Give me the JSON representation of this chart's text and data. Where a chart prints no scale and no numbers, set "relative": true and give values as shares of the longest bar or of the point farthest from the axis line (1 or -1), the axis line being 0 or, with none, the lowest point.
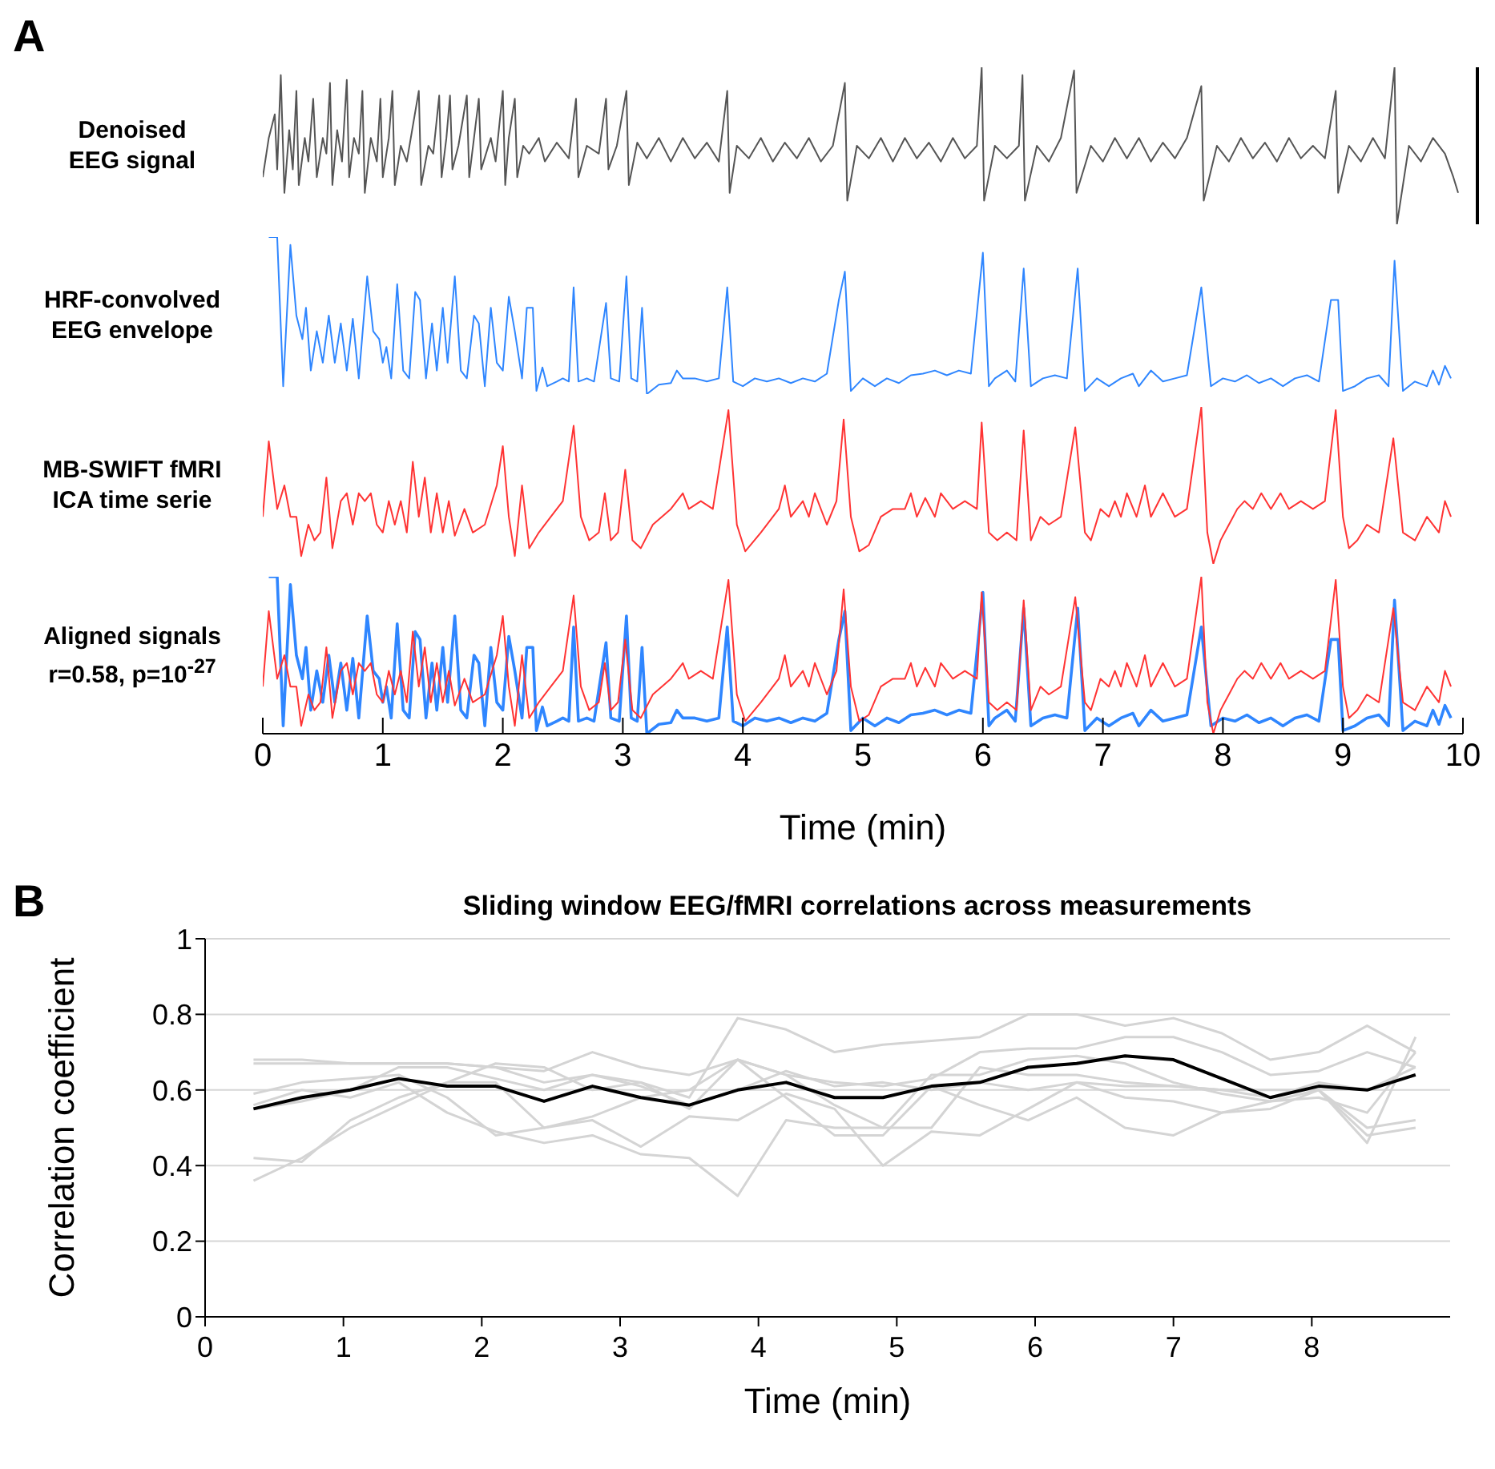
{
  "chart_data": [
    {
      "type": "line",
      "relative": true,
      "annotations": [
        "A"
      ],
      "ylabel": "Denoised\nEEG signal",
      "xlim": [
        0,
        10
      ],
      "tick_labels": false,
      "marker": "none",
      "x": [
        0.0,
        0.05,
        0.1,
        0.12,
        0.15,
        0.18,
        0.22,
        0.25,
        0.28,
        0.3,
        0.35,
        0.38,
        0.42,
        0.45,
        0.5,
        0.53,
        0.56,
        0.58,
        0.62,
        0.66,
        0.7,
        0.72,
        0.76,
        0.8,
        0.83,
        0.85,
        0.9,
        0.95,
        0.98,
        1.0,
        1.05,
        1.08,
        1.1,
        1.15,
        1.2,
        1.3,
        1.32,
        1.38,
        1.42,
        1.47,
        1.49,
        1.53,
        1.56,
        1.58,
        1.63,
        1.7,
        1.72,
        1.76,
        1.8,
        1.82,
        1.9,
        1.94,
        2.0,
        2.02,
        2.05,
        2.1,
        2.12,
        2.17,
        2.22,
        2.3,
        2.35,
        2.45,
        2.55,
        2.61,
        2.63,
        2.7,
        2.8,
        2.86,
        2.88,
        2.95,
        3.03,
        3.05,
        3.12,
        3.2,
        3.3,
        3.4,
        3.5,
        3.6,
        3.7,
        3.8,
        3.87,
        3.89,
        3.95,
        4.05,
        4.15,
        4.25,
        4.35,
        4.45,
        4.55,
        4.65,
        4.75,
        4.85,
        4.87,
        4.95,
        5.05,
        5.15,
        5.25,
        5.35,
        5.45,
        5.55,
        5.65,
        5.75,
        5.85,
        5.95,
        5.99,
        6.01,
        6.1,
        6.2,
        6.3,
        6.33,
        6.35,
        6.45,
        6.55,
        6.65,
        6.76,
        6.78,
        6.9,
        7.0,
        7.1,
        7.2,
        7.3,
        7.4,
        7.5,
        7.6,
        7.7,
        7.82,
        7.84,
        7.95,
        8.05,
        8.15,
        8.25,
        8.35,
        8.45,
        8.55,
        8.65,
        8.75,
        8.85,
        8.94,
        8.96,
        9.05,
        9.15,
        9.25,
        9.35,
        9.43,
        9.45,
        9.55,
        9.65,
        9.75,
        9.85,
        9.92,
        9.96
      ],
      "series": [
        {
          "color": "#555555",
          "values": [
            0.3,
            0.55,
            0.7,
            0.35,
            0.95,
            0.2,
            0.6,
            0.35,
            0.85,
            0.25,
            0.55,
            0.4,
            0.8,
            0.3,
            0.55,
            0.45,
            0.9,
            0.25,
            0.6,
            0.4,
            0.92,
            0.3,
            0.55,
            0.45,
            0.85,
            0.2,
            0.55,
            0.4,
            0.8,
            0.3,
            0.55,
            0.85,
            0.25,
            0.5,
            0.4,
            0.85,
            0.25,
            0.5,
            0.45,
            0.82,
            0.3,
            0.55,
            0.82,
            0.35,
            0.5,
            0.82,
            0.3,
            0.55,
            0.8,
            0.35,
            0.55,
            0.4,
            0.85,
            0.25,
            0.55,
            0.8,
            0.3,
            0.5,
            0.45,
            0.55,
            0.4,
            0.52,
            0.42,
            0.8,
            0.3,
            0.5,
            0.45,
            0.8,
            0.35,
            0.5,
            0.85,
            0.25,
            0.52,
            0.42,
            0.55,
            0.4,
            0.55,
            0.42,
            0.52,
            0.4,
            0.85,
            0.2,
            0.5,
            0.42,
            0.55,
            0.4,
            0.52,
            0.42,
            0.55,
            0.4,
            0.5,
            0.9,
            0.15,
            0.5,
            0.42,
            0.55,
            0.4,
            0.55,
            0.42,
            0.52,
            0.4,
            0.55,
            0.42,
            0.5,
            1.0,
            0.15,
            0.5,
            0.42,
            0.5,
            0.95,
            0.15,
            0.5,
            0.4,
            0.55,
            0.98,
            0.2,
            0.5,
            0.4,
            0.55,
            0.42,
            0.55,
            0.4,
            0.52,
            0.42,
            0.55,
            0.88,
            0.15,
            0.5,
            0.4,
            0.55,
            0.42,
            0.52,
            0.4,
            0.55,
            0.42,
            0.5,
            0.42,
            0.85,
            0.2,
            0.5,
            0.4,
            0.55,
            0.42,
            1.0,
            0.0,
            0.5,
            0.4,
            0.55,
            0.45,
            0.3,
            0.2
          ]
        }
      ]
    },
    {
      "type": "line",
      "relative": true,
      "ylabel": "HRF-convolved\nEEG envelope",
      "xlim": [
        0,
        10
      ],
      "tick_labels": false,
      "marker": "none",
      "series": [
        {
          "color": "#2f86ff",
          "x": [
            0.05,
            0.12,
            0.17,
            0.23,
            0.28,
            0.33,
            0.36,
            0.4,
            0.45,
            0.5,
            0.55,
            0.6,
            0.65,
            0.7,
            0.75,
            0.8,
            0.87,
            0.92,
            0.97,
            1.0,
            1.03,
            1.07,
            1.12,
            1.17,
            1.22,
            1.27,
            1.31,
            1.36,
            1.41,
            1.45,
            1.5,
            1.54,
            1.6,
            1.65,
            1.7,
            1.76,
            1.8,
            1.85,
            1.9,
            1.95,
            2.0,
            2.05,
            2.1,
            2.16,
            2.2,
            2.25,
            2.28,
            2.33,
            2.37,
            2.45,
            2.5,
            2.55,
            2.59,
            2.63,
            2.7,
            2.76,
            2.86,
            2.9,
            2.97,
            3.03,
            3.07,
            3.12,
            3.16,
            3.2,
            3.3,
            3.4,
            3.45,
            3.5,
            3.6,
            3.7,
            3.8,
            3.87,
            3.92,
            4.0,
            4.1,
            4.2,
            4.3,
            4.4,
            4.5,
            4.6,
            4.7,
            4.8,
            4.85,
            4.9,
            5.0,
            5.1,
            5.2,
            5.3,
            5.4,
            5.5,
            5.6,
            5.7,
            5.8,
            5.9,
            6.0,
            6.05,
            6.1,
            6.2,
            6.27,
            6.34,
            6.4,
            6.5,
            6.6,
            6.7,
            6.79,
            6.85,
            6.95,
            7.05,
            7.15,
            7.25,
            7.3,
            7.4,
            7.5,
            7.6,
            7.7,
            7.82,
            7.9,
            8.0,
            8.1,
            8.2,
            8.3,
            8.4,
            8.5,
            8.6,
            8.7,
            8.8,
            8.9,
            8.96,
            9.0,
            9.1,
            9.2,
            9.3,
            9.38,
            9.43,
            9.5,
            9.6,
            9.7,
            9.75,
            9.8,
            9.85,
            9.9
          ],
          "values": [
            1.0,
            1.0,
            0.05,
            0.95,
            0.5,
            0.35,
            0.55,
            0.15,
            0.4,
            0.2,
            0.5,
            0.2,
            0.45,
            0.15,
            0.48,
            0.1,
            0.75,
            0.4,
            0.35,
            0.2,
            0.3,
            0.1,
            0.7,
            0.15,
            0.1,
            0.65,
            0.6,
            0.1,
            0.45,
            0.15,
            0.55,
            0.2,
            0.75,
            0.15,
            0.1,
            0.5,
            0.45,
            0.05,
            0.55,
            0.2,
            0.15,
            0.62,
            0.4,
            0.1,
            0.55,
            0.55,
            0.02,
            0.17,
            0.05,
            0.08,
            0.1,
            0.08,
            0.68,
            0.08,
            0.1,
            0.08,
            0.58,
            0.1,
            0.08,
            0.75,
            0.1,
            0.08,
            0.55,
            0.0,
            0.06,
            0.07,
            0.15,
            0.1,
            0.1,
            0.08,
            0.1,
            0.68,
            0.08,
            0.05,
            0.1,
            0.08,
            0.1,
            0.07,
            0.1,
            0.08,
            0.13,
            0.6,
            0.78,
            0.02,
            0.1,
            0.05,
            0.1,
            0.07,
            0.12,
            0.13,
            0.15,
            0.12,
            0.15,
            0.13,
            0.9,
            0.05,
            0.1,
            0.15,
            0.08,
            0.8,
            0.05,
            0.1,
            0.12,
            0.1,
            0.8,
            0.02,
            0.1,
            0.05,
            0.1,
            0.13,
            0.05,
            0.15,
            0.08,
            0.1,
            0.12,
            0.68,
            0.05,
            0.1,
            0.08,
            0.12,
            0.07,
            0.1,
            0.05,
            0.1,
            0.12,
            0.08,
            0.6,
            0.6,
            0.02,
            0.05,
            0.1,
            0.12,
            0.05,
            0.85,
            0.02,
            0.08,
            0.05,
            0.15,
            0.06,
            0.18,
            0.1
          ]
        }
      ]
    },
    {
      "type": "line",
      "relative": true,
      "ylabel": "MB-SWIFT fMRI\nICA time serie",
      "xlim": [
        0,
        10
      ],
      "tick_labels": false,
      "marker": "none",
      "series": [
        {
          "color": "#ff3333",
          "x": [
            0.0,
            0.05,
            0.12,
            0.18,
            0.23,
            0.28,
            0.32,
            0.38,
            0.43,
            0.48,
            0.53,
            0.58,
            0.65,
            0.7,
            0.75,
            0.8,
            0.85,
            0.9,
            0.95,
            1.0,
            1.05,
            1.1,
            1.15,
            1.2,
            1.25,
            1.3,
            1.35,
            1.4,
            1.45,
            1.5,
            1.55,
            1.6,
            1.68,
            1.75,
            1.85,
            1.95,
            2.0,
            2.05,
            2.1,
            2.16,
            2.22,
            2.3,
            2.4,
            2.5,
            2.59,
            2.65,
            2.72,
            2.8,
            2.85,
            2.9,
            2.96,
            3.02,
            3.08,
            3.15,
            3.25,
            3.4,
            3.5,
            3.55,
            3.65,
            3.75,
            3.88,
            3.95,
            4.02,
            4.15,
            4.3,
            4.35,
            4.4,
            4.5,
            4.55,
            4.6,
            4.7,
            4.78,
            4.84,
            4.9,
            4.97,
            5.05,
            5.15,
            5.25,
            5.35,
            5.4,
            5.45,
            5.52,
            5.6,
            5.65,
            5.75,
            5.85,
            5.95,
            5.99,
            6.05,
            6.12,
            6.2,
            6.28,
            6.34,
            6.4,
            6.48,
            6.55,
            6.65,
            6.77,
            6.85,
            6.9,
            6.98,
            7.05,
            7.1,
            7.15,
            7.2,
            7.28,
            7.35,
            7.4,
            7.5,
            7.6,
            7.7,
            7.82,
            7.87,
            7.92,
            7.98,
            8.05,
            8.12,
            8.18,
            8.25,
            8.32,
            8.4,
            8.48,
            8.55,
            8.65,
            8.75,
            8.85,
            8.94,
            9.0,
            9.05,
            9.12,
            9.2,
            9.3,
            9.42,
            9.5,
            9.6,
            9.7,
            9.8,
            9.85,
            9.9
          ],
          "values": [
            0.3,
            0.78,
            0.35,
            0.5,
            0.3,
            0.3,
            0.05,
            0.25,
            0.15,
            0.2,
            0.55,
            0.1,
            0.4,
            0.45,
            0.25,
            0.45,
            0.4,
            0.45,
            0.25,
            0.2,
            0.4,
            0.25,
            0.4,
            0.2,
            0.65,
            0.3,
            0.55,
            0.2,
            0.45,
            0.2,
            0.4,
            0.18,
            0.35,
            0.2,
            0.25,
            0.5,
            0.75,
            0.3,
            0.05,
            0.5,
            0.1,
            0.2,
            0.3,
            0.4,
            0.88,
            0.3,
            0.15,
            0.2,
            0.45,
            0.15,
            0.2,
            0.6,
            0.15,
            0.1,
            0.25,
            0.35,
            0.45,
            0.35,
            0.4,
            0.35,
            0.98,
            0.25,
            0.08,
            0.2,
            0.35,
            0.5,
            0.3,
            0.4,
            0.3,
            0.45,
            0.25,
            0.4,
            0.92,
            0.3,
            0.08,
            0.12,
            0.3,
            0.35,
            0.35,
            0.45,
            0.3,
            0.42,
            0.3,
            0.45,
            0.35,
            0.4,
            0.35,
            0.9,
            0.2,
            0.15,
            0.2,
            0.15,
            0.85,
            0.15,
            0.3,
            0.25,
            0.3,
            0.87,
            0.2,
            0.15,
            0.35,
            0.3,
            0.4,
            0.3,
            0.45,
            0.3,
            0.5,
            0.3,
            0.45,
            0.3,
            0.35,
            1.0,
            0.2,
            0.0,
            0.15,
            0.25,
            0.35,
            0.4,
            0.35,
            0.45,
            0.35,
            0.45,
            0.35,
            0.4,
            0.35,
            0.4,
            0.98,
            0.3,
            0.1,
            0.15,
            0.25,
            0.2,
            0.8,
            0.2,
            0.15,
            0.3,
            0.2,
            0.4,
            0.3
          ]
        }
      ]
    },
    {
      "type": "line",
      "relative": true,
      "ylabel": "Aligned signals\nr=0.58, p=10$^{-27}$",
      "xlabel": "Time (min)",
      "xlim": [
        0,
        10
      ],
      "xticks": [
        0,
        1,
        2,
        3,
        4,
        5,
        6,
        7,
        8,
        9,
        10
      ],
      "tick_labels": "x",
      "marker": "none",
      "series": [
        {
          "color": "#2f86ff",
          "x": [
            0.05,
            0.12,
            0.17,
            0.23,
            0.28,
            0.33,
            0.36,
            0.4,
            0.45,
            0.5,
            0.55,
            0.6,
            0.65,
            0.7,
            0.75,
            0.8,
            0.87,
            0.92,
            0.97,
            1.0,
            1.03,
            1.07,
            1.12,
            1.17,
            1.22,
            1.27,
            1.31,
            1.36,
            1.41,
            1.45,
            1.5,
            1.54,
            1.6,
            1.65,
            1.7,
            1.76,
            1.8,
            1.85,
            1.9,
            1.95,
            2.0,
            2.05,
            2.1,
            2.16,
            2.2,
            2.25,
            2.28,
            2.33,
            2.37,
            2.45,
            2.5,
            2.55,
            2.59,
            2.63,
            2.7,
            2.76,
            2.86,
            2.9,
            2.97,
            3.03,
            3.07,
            3.12,
            3.16,
            3.2,
            3.3,
            3.4,
            3.45,
            3.5,
            3.6,
            3.7,
            3.8,
            3.87,
            3.92,
            4.0,
            4.1,
            4.2,
            4.3,
            4.4,
            4.5,
            4.6,
            4.7,
            4.8,
            4.85,
            4.9,
            5.0,
            5.1,
            5.2,
            5.3,
            5.4,
            5.5,
            5.6,
            5.7,
            5.8,
            5.9,
            6.0,
            6.05,
            6.1,
            6.2,
            6.27,
            6.34,
            6.4,
            6.5,
            6.6,
            6.7,
            6.79,
            6.85,
            6.95,
            7.05,
            7.15,
            7.25,
            7.3,
            7.4,
            7.5,
            7.6,
            7.7,
            7.82,
            7.9,
            8.0,
            8.1,
            8.2,
            8.3,
            8.4,
            8.5,
            8.6,
            8.7,
            8.8,
            8.9,
            8.96,
            9.0,
            9.1,
            9.2,
            9.3,
            9.38,
            9.43,
            9.5,
            9.6,
            9.7,
            9.75,
            9.8,
            9.85,
            9.9
          ],
          "values": [
            1.0,
            1.0,
            0.05,
            0.95,
            0.5,
            0.35,
            0.55,
            0.15,
            0.4,
            0.2,
            0.5,
            0.2,
            0.45,
            0.15,
            0.48,
            0.1,
            0.75,
            0.4,
            0.35,
            0.2,
            0.3,
            0.1,
            0.7,
            0.15,
            0.1,
            0.65,
            0.6,
            0.1,
            0.45,
            0.15,
            0.55,
            0.2,
            0.75,
            0.15,
            0.1,
            0.5,
            0.45,
            0.05,
            0.55,
            0.2,
            0.15,
            0.62,
            0.4,
            0.1,
            0.55,
            0.55,
            0.02,
            0.17,
            0.05,
            0.08,
            0.1,
            0.08,
            0.68,
            0.08,
            0.1,
            0.08,
            0.58,
            0.1,
            0.08,
            0.75,
            0.1,
            0.08,
            0.55,
            0.0,
            0.06,
            0.07,
            0.15,
            0.1,
            0.1,
            0.08,
            0.1,
            0.68,
            0.08,
            0.05,
            0.1,
            0.08,
            0.1,
            0.07,
            0.1,
            0.08,
            0.13,
            0.6,
            0.78,
            0.02,
            0.1,
            0.05,
            0.1,
            0.07,
            0.12,
            0.13,
            0.15,
            0.12,
            0.15,
            0.13,
            0.9,
            0.05,
            0.1,
            0.15,
            0.08,
            0.8,
            0.05,
            0.1,
            0.12,
            0.1,
            0.8,
            0.02,
            0.1,
            0.05,
            0.1,
            0.13,
            0.05,
            0.15,
            0.08,
            0.1,
            0.12,
            0.68,
            0.05,
            0.1,
            0.08,
            0.12,
            0.07,
            0.1,
            0.05,
            0.1,
            0.12,
            0.08,
            0.6,
            0.6,
            0.02,
            0.05,
            0.1,
            0.12,
            0.05,
            0.85,
            0.02,
            0.08,
            0.05,
            0.15,
            0.06,
            0.18,
            0.1
          ]
        },
        {
          "color": "#ff3333",
          "x": [
            0.0,
            0.05,
            0.12,
            0.18,
            0.23,
            0.28,
            0.32,
            0.38,
            0.43,
            0.48,
            0.53,
            0.58,
            0.65,
            0.7,
            0.75,
            0.8,
            0.85,
            0.9,
            0.95,
            1.0,
            1.05,
            1.1,
            1.15,
            1.2,
            1.25,
            1.3,
            1.35,
            1.4,
            1.45,
            1.5,
            1.55,
            1.6,
            1.68,
            1.75,
            1.85,
            1.95,
            2.0,
            2.05,
            2.1,
            2.16,
            2.22,
            2.3,
            2.4,
            2.5,
            2.59,
            2.65,
            2.72,
            2.8,
            2.85,
            2.9,
            2.96,
            3.02,
            3.08,
            3.15,
            3.25,
            3.4,
            3.5,
            3.55,
            3.65,
            3.75,
            3.88,
            3.95,
            4.02,
            4.15,
            4.3,
            4.35,
            4.4,
            4.5,
            4.55,
            4.6,
            4.7,
            4.78,
            4.84,
            4.9,
            4.97,
            5.05,
            5.15,
            5.25,
            5.35,
            5.4,
            5.45,
            5.52,
            5.6,
            5.65,
            5.75,
            5.85,
            5.95,
            5.99,
            6.05,
            6.12,
            6.2,
            6.28,
            6.34,
            6.4,
            6.48,
            6.55,
            6.65,
            6.77,
            6.85,
            6.9,
            6.98,
            7.05,
            7.1,
            7.15,
            7.2,
            7.28,
            7.35,
            7.4,
            7.5,
            7.6,
            7.7,
            7.82,
            7.87,
            7.92,
            7.98,
            8.05,
            8.12,
            8.18,
            8.25,
            8.32,
            8.4,
            8.48,
            8.55,
            8.65,
            8.75,
            8.85,
            8.94,
            9.0,
            9.05,
            9.12,
            9.2,
            9.3,
            9.42,
            9.5,
            9.6,
            9.7,
            9.8,
            9.85,
            9.9
          ],
          "values": [
            0.3,
            0.78,
            0.35,
            0.5,
            0.3,
            0.3,
            0.05,
            0.25,
            0.15,
            0.2,
            0.55,
            0.1,
            0.4,
            0.45,
            0.25,
            0.45,
            0.4,
            0.45,
            0.25,
            0.2,
            0.4,
            0.25,
            0.4,
            0.2,
            0.65,
            0.3,
            0.55,
            0.2,
            0.45,
            0.2,
            0.4,
            0.18,
            0.35,
            0.2,
            0.25,
            0.5,
            0.75,
            0.3,
            0.05,
            0.5,
            0.1,
            0.2,
            0.3,
            0.4,
            0.88,
            0.3,
            0.15,
            0.2,
            0.45,
            0.15,
            0.2,
            0.6,
            0.15,
            0.1,
            0.25,
            0.35,
            0.45,
            0.35,
            0.4,
            0.35,
            0.98,
            0.25,
            0.08,
            0.2,
            0.35,
            0.5,
            0.3,
            0.4,
            0.3,
            0.45,
            0.25,
            0.4,
            0.92,
            0.3,
            0.08,
            0.12,
            0.3,
            0.35,
            0.35,
            0.45,
            0.3,
            0.42,
            0.3,
            0.45,
            0.35,
            0.4,
            0.35,
            0.9,
            0.2,
            0.15,
            0.2,
            0.15,
            0.85,
            0.15,
            0.3,
            0.25,
            0.3,
            0.87,
            0.2,
            0.15,
            0.35,
            0.3,
            0.4,
            0.3,
            0.45,
            0.3,
            0.5,
            0.3,
            0.45,
            0.3,
            0.35,
            1.0,
            0.2,
            0.0,
            0.15,
            0.25,
            0.35,
            0.4,
            0.35,
            0.45,
            0.35,
            0.45,
            0.35,
            0.4,
            0.35,
            0.4,
            0.98,
            0.3,
            0.1,
            0.15,
            0.25,
            0.2,
            0.8,
            0.2,
            0.15,
            0.3,
            0.2,
            0.4,
            0.3
          ]
        }
      ]
    },
    {
      "type": "line",
      "annotations": [
        "B"
      ],
      "title": "Sliding window EEG/fMRI correlations across measurements",
      "xlabel": "Time (min)",
      "ylabel": "Correlation coefficient",
      "xlim": [
        0,
        9
      ],
      "xticks": [
        0,
        1,
        2,
        3,
        4,
        5,
        6,
        7,
        8
      ],
      "ylim": [
        0,
        1
      ],
      "yticks": [
        0,
        0.2,
        0.4,
        0.6,
        0.8,
        1
      ],
      "grid": "y",
      "marker": "none",
      "x": [
        0.35,
        0.7,
        1.05,
        1.4,
        1.75,
        2.1,
        2.45,
        2.8,
        3.15,
        3.5,
        3.85,
        4.2,
        4.55,
        4.9,
        5.25,
        5.6,
        5.95,
        6.3,
        6.65,
        7.0,
        7.35,
        7.7,
        8.05,
        8.4,
        8.75
      ],
      "series": [
        {
          "color": "#d4d4d4",
          "values": [
            0.68,
            0.68,
            0.67,
            0.67,
            0.67,
            0.66,
            0.65,
            0.7,
            0.66,
            0.64,
            0.68,
            0.64,
            0.62,
            0.61,
            0.63,
            0.7,
            0.71,
            0.71,
            0.74,
            0.74,
            0.7,
            0.64,
            0.65,
            0.7,
            0.66
          ]
        },
        {
          "color": "#d4d4d4",
          "values": [
            0.67,
            0.67,
            0.67,
            0.67,
            0.67,
            0.66,
            0.62,
            0.64,
            0.62,
            0.58,
            0.79,
            0.76,
            0.7,
            0.72,
            0.73,
            0.74,
            0.8,
            0.8,
            0.77,
            0.79,
            0.75,
            0.68,
            0.7,
            0.77,
            0.7
          ]
        },
        {
          "color": "#d4d4d4",
          "values": [
            0.36,
            0.42,
            0.5,
            0.56,
            0.62,
            0.67,
            0.66,
            0.6,
            0.62,
            0.55,
            0.68,
            0.64,
            0.56,
            0.5,
            0.5,
            0.66,
            0.64,
            0.64,
            0.62,
            0.61,
            0.6,
            0.6,
            0.6,
            0.46,
            0.74
          ]
        },
        {
          "color": "#d4d4d4",
          "values": [
            0.42,
            0.41,
            0.52,
            0.58,
            0.62,
            0.62,
            0.5,
            0.52,
            0.45,
            0.53,
            0.52,
            0.59,
            0.55,
            0.4,
            0.49,
            0.48,
            0.55,
            0.62,
            0.58,
            0.57,
            0.54,
            0.55,
            0.6,
            0.5,
            0.52
          ]
        },
        {
          "color": "#d4d4d4",
          "values": [
            0.59,
            0.62,
            0.63,
            0.64,
            0.58,
            0.48,
            0.5,
            0.53,
            0.58,
            0.6,
            0.68,
            0.58,
            0.48,
            0.48,
            0.61,
            0.56,
            0.52,
            0.58,
            0.5,
            0.48,
            0.54,
            0.57,
            0.6,
            0.48,
            0.5
          ]
        },
        {
          "color": "#d4d4d4",
          "values": [
            0.56,
            0.6,
            0.58,
            0.62,
            0.54,
            0.49,
            0.46,
            0.48,
            0.43,
            0.42,
            0.32,
            0.52,
            0.5,
            0.5,
            0.64,
            0.64,
            0.68,
            0.69,
            0.67,
            0.62,
            0.59,
            0.57,
            0.58,
            0.54,
            0.7
          ]
        },
        {
          "color": "#d4d4d4",
          "values": [
            0.55,
            0.57,
            0.6,
            0.66,
            0.66,
            0.63,
            0.6,
            0.64,
            0.61,
            0.56,
            0.6,
            0.65,
            0.61,
            0.62,
            0.6,
            0.62,
            0.6,
            0.62,
            0.61,
            0.61,
            0.6,
            0.58,
            0.62,
            0.6,
            0.66
          ]
        },
        {
          "color": "#000000",
          "values": [
            0.55,
            0.58,
            0.6,
            0.63,
            0.61,
            0.61,
            0.57,
            0.61,
            0.58,
            0.56,
            0.6,
            0.62,
            0.58,
            0.58,
            0.61,
            0.62,
            0.66,
            0.67,
            0.69,
            0.68,
            0.63,
            0.58,
            0.61,
            0.6,
            0.64
          ]
        }
      ]
    }
  ]
}
